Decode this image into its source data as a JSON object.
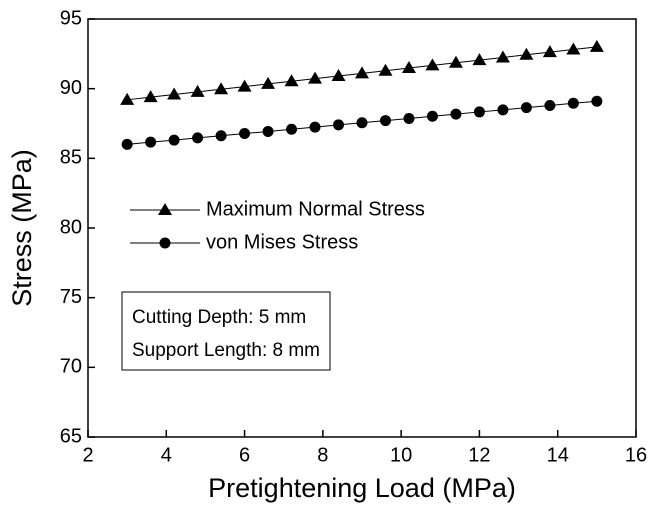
{
  "chart_data": {
    "type": "line",
    "xlabel": "Pretightening Load (MPa)",
    "ylabel": "Stress (MPa)",
    "x": [
      3,
      3.6,
      4.2,
      4.8,
      5.4,
      6,
      6.6,
      7.2,
      7.8,
      8.4,
      9,
      9.6,
      10.2,
      10.8,
      11.4,
      12,
      12.6,
      13.2,
      13.8,
      14.4,
      15
    ],
    "series": [
      {
        "name": "Maximum Normal Stress",
        "color": "#000000",
        "marker": "triangle",
        "values": [
          89.2,
          89.39,
          89.58,
          89.77,
          89.96,
          90.15,
          90.34,
          90.53,
          90.72,
          90.91,
          91.1,
          91.29,
          91.48,
          91.67,
          91.86,
          92.05,
          92.24,
          92.43,
          92.62,
          92.81,
          93.0
        ]
      },
      {
        "name": "von Mises Stress",
        "color": "#000000",
        "marker": "circle",
        "values": [
          86.0,
          86.16,
          86.31,
          86.47,
          86.62,
          86.78,
          86.93,
          87.09,
          87.24,
          87.4,
          87.55,
          87.71,
          87.86,
          88.02,
          88.17,
          88.33,
          88.48,
          88.64,
          88.79,
          88.95,
          89.1
        ]
      }
    ],
    "xlim": [
      2,
      16
    ],
    "xticks": [
      2,
      4,
      6,
      8,
      10,
      12,
      14,
      16
    ],
    "ylim": [
      65,
      95
    ],
    "yticks": [
      65,
      70,
      75,
      80,
      85,
      90,
      95
    ],
    "grid": false,
    "legend": "center-left",
    "annotation": [
      "Cutting Depth: 5 mm",
      "Support Length: 8 mm"
    ]
  }
}
